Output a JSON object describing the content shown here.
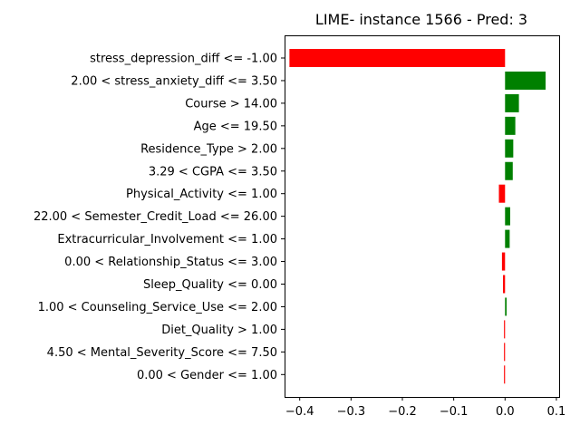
{
  "chart_data": {
    "type": "bar",
    "orientation": "horizontal",
    "title": "LIME- instance 1566 - Pred: 3",
    "xlabel": "",
    "ylabel": "",
    "xlim": [
      -0.4295,
      0.1054
    ],
    "xticks": [
      -0.4,
      -0.3,
      -0.2,
      -0.1,
      0.0,
      0.1
    ],
    "xtick_labels": [
      "−0.4",
      "−0.3",
      "−0.2",
      "−0.1",
      "0.0",
      "0.1"
    ],
    "grid": false,
    "legend": "none",
    "positive_color": "#008000",
    "negative_color": "#ff0000",
    "categories": [
      "stress_depression_diff <= -1.00",
      "2.00 < stress_anxiety_diff <= 3.50",
      "Course > 14.00",
      "Age <= 19.50",
      "Residence_Type > 2.00",
      "3.29 < CGPA <= 3.50",
      "Physical_Activity <= 1.00",
      "22.00 < Semester_Credit_Load <= 26.00",
      "Extracurricular_Involvement <= 1.00",
      "0.00 < Relationship_Status <= 3.00",
      "Sleep_Quality <= 0.00",
      "1.00 < Counseling_Service_Use <= 2.00",
      "Diet_Quality > 1.00",
      "4.50 < Mental_Severity_Score <= 7.50",
      "0.00 < Gender <= 1.00"
    ],
    "values": [
      -0.42,
      0.079,
      0.027,
      0.02,
      0.016,
      0.015,
      -0.012,
      0.01,
      0.009,
      -0.006,
      -0.004,
      0.003,
      -0.002,
      -0.002,
      -0.002
    ]
  }
}
